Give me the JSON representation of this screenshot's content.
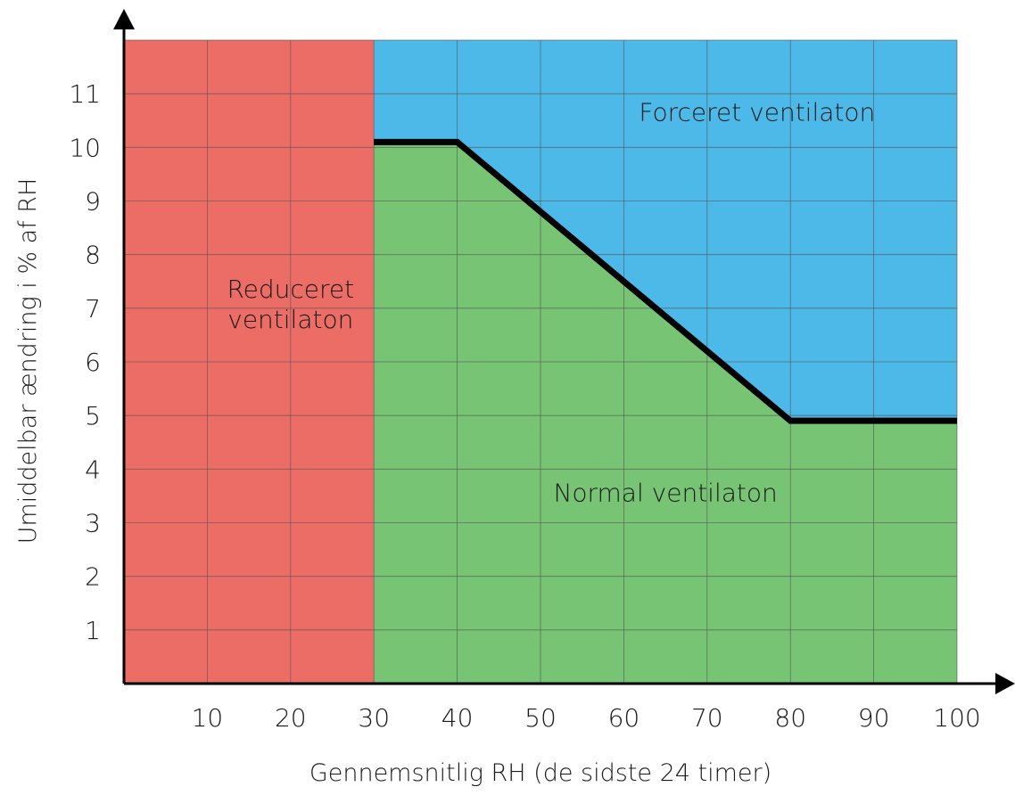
{
  "chart_data": {
    "type": "area",
    "xlabel": "Gennemsnitlig RH (de sidste 24 timer)",
    "ylabel": "Umiddelbar ændring i % af RH",
    "xlim": [
      0,
      100
    ],
    "ylim": [
      0,
      12
    ],
    "x_ticks": [
      10,
      20,
      30,
      40,
      50,
      60,
      70,
      80,
      90,
      100
    ],
    "y_ticks": [
      1,
      2,
      3,
      4,
      5,
      6,
      7,
      8,
      9,
      10,
      11
    ],
    "grid": true,
    "threshold_line": {
      "x": [
        30,
        40,
        80,
        100
      ],
      "y": [
        10.1,
        10.1,
        4.9,
        4.9
      ]
    },
    "regions": [
      {
        "name": "Reduceret ventilaton",
        "lines": [
          "Reduceret",
          "ventilaton"
        ],
        "color": "#ec6c66",
        "x_range": [
          0,
          30
        ],
        "label_pos": [
          20,
          7.2
        ]
      },
      {
        "name": "Forceret ventilaton",
        "lines": [
          "Forceret ventilaton"
        ],
        "color": "#4db9e8",
        "x_range": [
          30,
          100
        ],
        "label_pos": [
          76,
          10.5
        ]
      },
      {
        "name": "Normal ventilaton",
        "lines": [
          "Normal ventilaton"
        ],
        "color": "#77c474",
        "x_range": [
          30,
          100
        ],
        "label_pos": [
          65,
          3.4
        ]
      }
    ]
  }
}
